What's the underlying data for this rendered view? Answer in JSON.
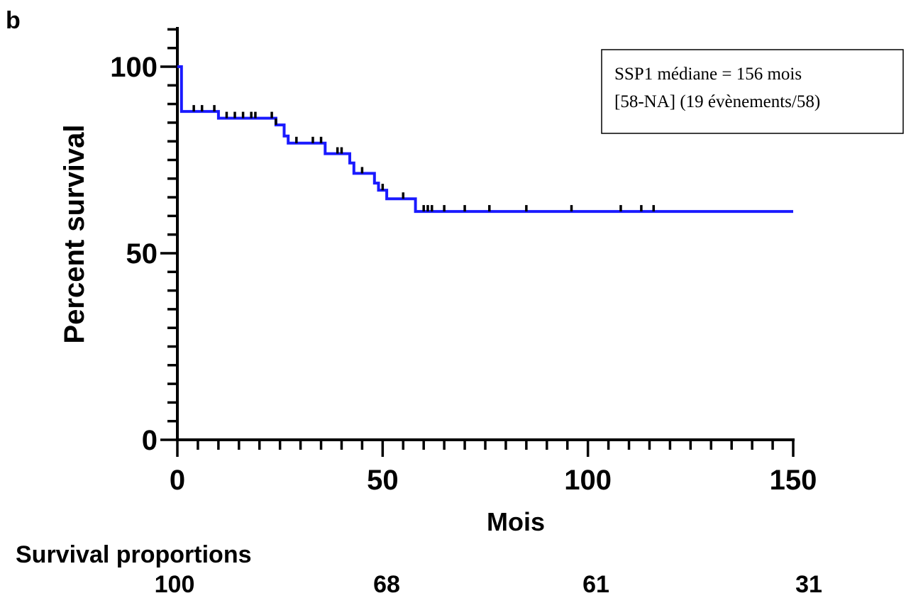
{
  "panel_label": "b",
  "chart_data": {
    "type": "line",
    "title": "",
    "xlabel": "Mois",
    "ylabel": "Percent survival",
    "xlim": [
      0,
      150
    ],
    "ylim": [
      0,
      100
    ],
    "x_major_ticks": [
      0,
      50,
      100,
      150
    ],
    "y_major_ticks": [
      0,
      50,
      100
    ],
    "x_tick_labels": [
      "0",
      "50",
      "100",
      "150"
    ],
    "y_tick_labels": [
      "0",
      "50",
      "100"
    ],
    "x_minor_step": 5,
    "y_minor_step": 5,
    "grid": false,
    "curve_color": "#1a1aff",
    "series": [
      {
        "step_points": [
          [
            0,
            100
          ],
          [
            1,
            100
          ],
          [
            1,
            88
          ],
          [
            10,
            88
          ],
          [
            10,
            86.2
          ],
          [
            24,
            86.2
          ],
          [
            24,
            84.4
          ],
          [
            26,
            84.4
          ],
          [
            26,
            81.4
          ],
          [
            27,
            81.4
          ],
          [
            27,
            79.5
          ],
          [
            36,
            79.5
          ],
          [
            36,
            76.7
          ],
          [
            42,
            76.7
          ],
          [
            42,
            74.2
          ],
          [
            43,
            74.2
          ],
          [
            43,
            71.4
          ],
          [
            48,
            71.4
          ],
          [
            48,
            68.8
          ],
          [
            49,
            68.8
          ],
          [
            49,
            66.9
          ],
          [
            51,
            66.9
          ],
          [
            51,
            64.6
          ],
          [
            58,
            64.6
          ],
          [
            58,
            61.2
          ],
          [
            150,
            61.2
          ]
        ],
        "censor_times": [
          4,
          6,
          9,
          12,
          14,
          16,
          18,
          19,
          23,
          24,
          29,
          33,
          35,
          39,
          40,
          45,
          50,
          55,
          60,
          61,
          62,
          65,
          70,
          76,
          85,
          96,
          108,
          113,
          116
        ]
      }
    ]
  },
  "legend": {
    "line1": "SSP1 médiane = 156 mois",
    "line2": "[58-NA] (19 évènements/58)"
  },
  "survival_proportions": {
    "title": "Survival proportions",
    "values": [
      "100",
      "68",
      "61",
      "31"
    ]
  }
}
